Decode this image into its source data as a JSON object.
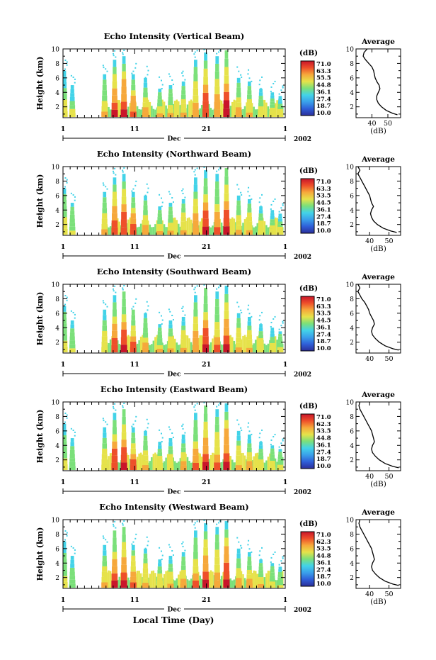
{
  "figure": {
    "xlabel": "Local Time (Day)"
  },
  "chart_data": [
    {
      "type": "heatmap",
      "title": "Echo Intensity (Vertical Beam)",
      "ylabel": "Height (km)",
      "ylim": [
        0.5,
        10
      ],
      "yticks": [
        2,
        4,
        6,
        8,
        10
      ],
      "xlim": [
        1,
        32
      ],
      "xtick_labels": [
        "1",
        "11",
        "21",
        "1"
      ],
      "month_label": "Dec",
      "year_label": "2002",
      "colorbar": {
        "unit": "(dB)",
        "ticks": [
          "71.0",
          "63.3",
          "55.5",
          "44.8",
          "36.1",
          "27.4",
          "18.7",
          "10.0"
        ]
      },
      "profile": {
        "title": "Average",
        "xlabel": "(dB)",
        "xticks": [
          40,
          50
        ],
        "xlim": [
          30,
          58
        ],
        "ylim": [
          0.5,
          10
        ],
        "points": [
          [
            37,
            10
          ],
          [
            35,
            9.5
          ],
          [
            34.5,
            9.0
          ],
          [
            36,
            8.5
          ],
          [
            38,
            8.0
          ],
          [
            40,
            7.5
          ],
          [
            41,
            7.0
          ],
          [
            41.5,
            6.5
          ],
          [
            42,
            6.0
          ],
          [
            43,
            5.5
          ],
          [
            44.5,
            5.0
          ],
          [
            45,
            4.5
          ],
          [
            44,
            4.0
          ],
          [
            43,
            3.5
          ],
          [
            43,
            3.0
          ],
          [
            44,
            2.5
          ],
          [
            46,
            2.0
          ],
          [
            49,
            1.5
          ],
          [
            53,
            1.1
          ],
          [
            56,
            0.9
          ]
        ]
      }
    },
    {
      "type": "heatmap",
      "title": "Echo Intensity (Northward Beam)",
      "ylabel": "Height (km)",
      "ylim": [
        0.5,
        10
      ],
      "yticks": [
        2,
        4,
        6,
        8,
        10
      ],
      "xlim": [
        1,
        32
      ],
      "xtick_labels": [
        "1",
        "11",
        "21",
        "1"
      ],
      "month_label": "Dec",
      "year_label": "2002",
      "colorbar": {
        "unit": "(dB)",
        "ticks": [
          "71.0",
          "63.3",
          "53.5",
          "44.5",
          "36.1",
          "27.4",
          "18.7",
          "10.0"
        ]
      },
      "profile": {
        "title": "Average",
        "xlabel": "(dB)",
        "xticks": [
          40,
          50
        ],
        "xlim": [
          33,
          56
        ],
        "ylim": [
          0.5,
          10
        ],
        "points": [
          [
            34,
            10
          ],
          [
            35,
            9.5
          ],
          [
            34,
            9.0
          ],
          [
            35,
            8.5
          ],
          [
            36,
            8.0
          ],
          [
            37,
            7.5
          ],
          [
            38,
            7.0
          ],
          [
            39,
            6.5
          ],
          [
            40,
            6.0
          ],
          [
            40.5,
            5.5
          ],
          [
            41,
            5.0
          ],
          [
            42,
            4.5
          ],
          [
            41,
            4.0
          ],
          [
            40.5,
            3.5
          ],
          [
            41,
            3.0
          ],
          [
            42,
            2.5
          ],
          [
            44,
            2.0
          ],
          [
            47,
            1.5
          ],
          [
            51,
            1.1
          ],
          [
            54,
            0.9
          ]
        ]
      }
    },
    {
      "type": "heatmap",
      "title": "Echo Intensity (Southward Beam)",
      "ylabel": "Height (km)",
      "ylim": [
        0.5,
        10
      ],
      "yticks": [
        2,
        4,
        6,
        8,
        10
      ],
      "xlim": [
        1,
        32
      ],
      "xtick_labels": [
        "1",
        "11",
        "21",
        "1"
      ],
      "month_label": "Dec",
      "year_label": "2002",
      "colorbar": {
        "unit": "(dB)",
        "ticks": [
          "71.0",
          "63.3",
          "53.5",
          "44.5",
          "36.1",
          "27.4",
          "18.7",
          "10.0"
        ]
      },
      "profile": {
        "title": "Average",
        "xlabel": "",
        "xticks": [
          40,
          50
        ],
        "xlim": [
          33,
          56
        ],
        "ylim": [
          0.5,
          10
        ],
        "points": [
          [
            34,
            10
          ],
          [
            35,
            9.5
          ],
          [
            34,
            9.0
          ],
          [
            35,
            8.5
          ],
          [
            36,
            8.0
          ],
          [
            37.5,
            7.5
          ],
          [
            38.5,
            7.0
          ],
          [
            39.5,
            6.5
          ],
          [
            40,
            6.0
          ],
          [
            41,
            5.5
          ],
          [
            42,
            5.0
          ],
          [
            42.5,
            4.5
          ],
          [
            41.5,
            4.0
          ],
          [
            41,
            3.5
          ],
          [
            41.5,
            3.0
          ],
          [
            43,
            2.5
          ],
          [
            45,
            2.0
          ],
          [
            48,
            1.5
          ],
          [
            52,
            1.1
          ],
          [
            55,
            0.9
          ]
        ]
      }
    },
    {
      "type": "heatmap",
      "title": "Echo Intensity (Eastward Beam)",
      "ylabel": "Height (km)",
      "ylim": [
        0.5,
        10
      ],
      "yticks": [
        2,
        4,
        6,
        8,
        10
      ],
      "xlim": [
        1,
        32
      ],
      "xtick_labels": [
        "1",
        "11",
        "21",
        "1"
      ],
      "month_label": "Dec",
      "year_label": "2002",
      "colorbar": {
        "unit": "(dB)",
        "ticks": [
          "71.0",
          "62.3",
          "53.5",
          "44.8",
          "36.1",
          "27.4",
          "18.7",
          "10.0"
        ]
      },
      "profile": {
        "title": "Average",
        "xlabel": "(dB)",
        "xticks": [
          40,
          50
        ],
        "xlim": [
          33,
          56
        ],
        "ylim": [
          0.5,
          10
        ],
        "points": [
          [
            35,
            10
          ],
          [
            34.5,
            9.5
          ],
          [
            35,
            9.0
          ],
          [
            36,
            8.5
          ],
          [
            37,
            8.0
          ],
          [
            38,
            7.5
          ],
          [
            39,
            7.0
          ],
          [
            40,
            6.5
          ],
          [
            41,
            6.0
          ],
          [
            41.5,
            5.5
          ],
          [
            42,
            5.0
          ],
          [
            42.5,
            4.5
          ],
          [
            41.5,
            4.0
          ],
          [
            41,
            3.5
          ],
          [
            41.5,
            3.0
          ],
          [
            43,
            2.5
          ],
          [
            45,
            2.0
          ],
          [
            48,
            1.5
          ],
          [
            52,
            1.1
          ],
          [
            55,
            0.9
          ]
        ]
      }
    },
    {
      "type": "heatmap",
      "title": "Echo Intensity (Westward Beam)",
      "ylabel": "Height (km)",
      "ylim": [
        0.5,
        10
      ],
      "yticks": [
        2,
        4,
        6,
        8,
        10
      ],
      "xlim": [
        1,
        32
      ],
      "xtick_labels": [
        "1",
        "11",
        "21",
        "1"
      ],
      "month_label": "Dec",
      "year_label": "2002",
      "colorbar": {
        "unit": "(dB)",
        "ticks": [
          "71.0",
          "62.3",
          "53.5",
          "44.8",
          "36.1",
          "27.4",
          "18.7",
          "10.0"
        ]
      },
      "profile": {
        "title": "Average",
        "xlabel": "(dB)",
        "xticks": [
          40,
          50
        ],
        "xlim": [
          33,
          56
        ],
        "ylim": [
          0.5,
          10
        ],
        "points": [
          [
            35,
            10
          ],
          [
            34.5,
            9.5
          ],
          [
            35,
            9.0
          ],
          [
            36,
            8.5
          ],
          [
            37,
            8.0
          ],
          [
            38,
            7.5
          ],
          [
            39,
            7.0
          ],
          [
            40,
            6.5
          ],
          [
            41,
            6.0
          ],
          [
            41.5,
            5.5
          ],
          [
            42,
            5.0
          ],
          [
            42.5,
            4.5
          ],
          [
            41.5,
            4.0
          ],
          [
            41,
            3.5
          ],
          [
            41.5,
            3.0
          ],
          [
            43,
            2.5
          ],
          [
            45,
            2.0
          ],
          [
            48,
            1.5
          ],
          [
            52,
            1.1
          ],
          [
            55,
            0.9
          ]
        ]
      }
    }
  ],
  "echo_events": [
    {
      "day": 1.2,
      "top": 7.0,
      "peak": 0.45
    },
    {
      "day": 2.3,
      "top": 5.0,
      "peak": 0.35
    },
    {
      "day": 6.8,
      "top": 6.5,
      "peak": 0.55
    },
    {
      "day": 8.2,
      "top": 8.5,
      "peak": 0.9
    },
    {
      "day": 9.5,
      "top": 9.0,
      "peak": 0.95
    },
    {
      "day": 10.8,
      "top": 6.5,
      "peak": 0.8
    },
    {
      "day": 12.5,
      "top": 6.0,
      "peak": 0.6
    },
    {
      "day": 14.5,
      "top": 4.5,
      "peak": 0.5
    },
    {
      "day": 16.0,
      "top": 5.0,
      "peak": 0.55
    },
    {
      "day": 17.8,
      "top": 5.5,
      "peak": 0.6
    },
    {
      "day": 19.5,
      "top": 8.5,
      "peak": 0.7
    },
    {
      "day": 20.9,
      "top": 9.5,
      "peak": 0.95
    },
    {
      "day": 22.5,
      "top": 9.0,
      "peak": 0.7
    },
    {
      "day": 23.8,
      "top": 9.8,
      "peak": 0.98
    },
    {
      "day": 25.5,
      "top": 6.0,
      "peak": 0.6
    },
    {
      "day": 27.0,
      "top": 5.5,
      "peak": 0.6
    },
    {
      "day": 28.6,
      "top": 4.5,
      "peak": 0.5
    },
    {
      "day": 30.2,
      "top": 4.0,
      "peak": 0.45
    },
    {
      "day": 31.3,
      "top": 3.5,
      "peak": 0.4
    }
  ],
  "colormap": [
    "#2b2f9a",
    "#2f5fd8",
    "#3aa0ea",
    "#43d3e8",
    "#7be07a",
    "#e6e24a",
    "#f6a83b",
    "#ee4f2a",
    "#c9152a"
  ]
}
